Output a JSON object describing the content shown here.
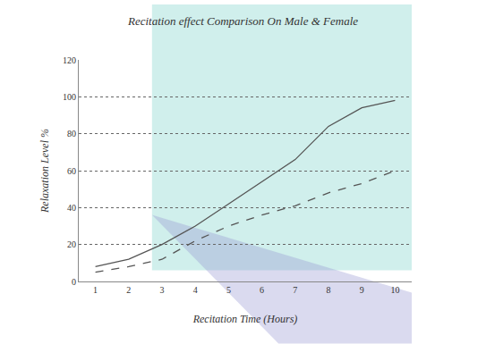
{
  "chart_data": {
    "type": "line",
    "title": "Recitation effect Comparison On Male & Female",
    "x_label": "Recitation Time (Hours)",
    "y_label": "Relaxation Level %",
    "x": [
      1,
      2,
      3,
      4,
      5,
      6,
      7,
      8,
      9,
      10
    ],
    "series": [
      {
        "color": "#555555",
        "line_style": "solid",
        "values": [
          8,
          12,
          20,
          30,
          42,
          54,
          66,
          84,
          94,
          98
        ]
      },
      {
        "color": "#555555",
        "line_style": "dash",
        "values": [
          5,
          8,
          12,
          22,
          30,
          36,
          41,
          48,
          53,
          60
        ]
      }
    ],
    "xlim": [
      0.5,
      10.5
    ],
    "xticks": [
      1,
      2,
      3,
      4,
      5,
      6,
      7,
      8,
      9,
      10
    ],
    "ylim": [
      0,
      120
    ],
    "yticks": [
      0,
      20,
      40,
      60,
      80,
      100,
      120
    ],
    "grid": true
  }
}
